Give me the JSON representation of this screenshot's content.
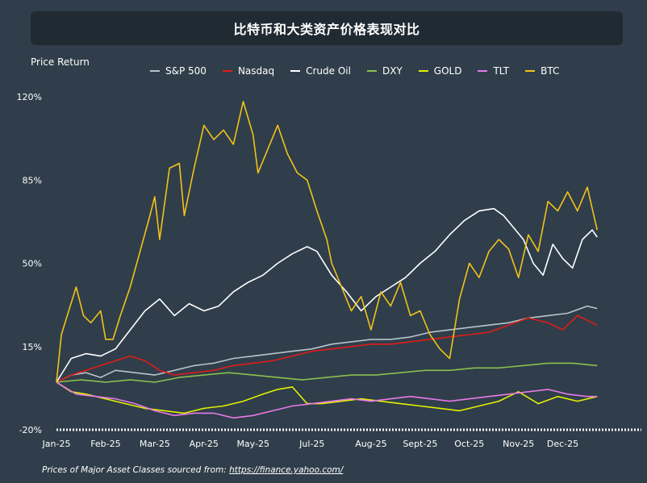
{
  "chart_data": {
    "type": "line",
    "title": "比特币和大类资产价格表现对比",
    "ylabel": "Price Return",
    "xlabel": "",
    "ylim": [
      -20,
      120
    ],
    "y_ticks": [
      "120%",
      "85%",
      "50%",
      "15%",
      "-20%"
    ],
    "y_tick_values": [
      120,
      85,
      50,
      15,
      -20
    ],
    "x_range": [
      0,
      11.9
    ],
    "x_ticks": [
      "Jan-25",
      "Feb-25",
      "Mar-25",
      "Apr-25",
      "May-25",
      "Jul-25",
      "Aug-25",
      "Sept-25",
      "Oct-25",
      "Nov-25",
      "Dec-25"
    ],
    "x_tick_values": [
      0,
      1,
      2,
      3,
      4,
      5.2,
      6.4,
      7.4,
      8.4,
      9.4,
      10.3
    ],
    "grid": false,
    "legend": "top",
    "series": [
      {
        "name": "S&P 500",
        "color": "#b8c4cc",
        "x": [
          0,
          0.3,
          0.6,
          0.9,
          1.2,
          1.6,
          2.0,
          2.4,
          2.8,
          3.2,
          3.6,
          4.0,
          4.4,
          4.8,
          5.2,
          5.6,
          6.0,
          6.4,
          6.8,
          7.2,
          7.6,
          8.0,
          8.4,
          8.8,
          9.2,
          9.6,
          10.0,
          10.4,
          10.8,
          11.0
        ],
        "values": [
          0,
          3,
          4,
          2,
          5,
          4,
          3,
          5,
          7,
          8,
          10,
          11,
          12,
          13,
          14,
          16,
          17,
          18,
          18,
          19,
          21,
          22,
          23,
          24,
          25,
          27,
          28,
          29,
          32,
          31
        ]
      },
      {
        "name": "Nasdaq",
        "color": "#e01b1b",
        "x": [
          0,
          0.3,
          0.6,
          0.9,
          1.2,
          1.5,
          1.8,
          2.1,
          2.4,
          2.8,
          3.2,
          3.6,
          4.0,
          4.4,
          4.8,
          5.2,
          5.6,
          6.0,
          6.4,
          6.8,
          7.2,
          7.6,
          8.0,
          8.4,
          8.8,
          9.2,
          9.6,
          10.0,
          10.3,
          10.6,
          10.8,
          11.0
        ],
        "values": [
          0,
          3,
          5,
          7,
          9,
          11,
          9,
          5,
          3,
          4,
          5,
          7,
          8,
          9,
          11,
          13,
          14,
          15,
          16,
          16,
          17,
          18,
          19,
          20,
          21,
          24,
          27,
          25,
          22,
          28,
          26,
          24
        ]
      },
      {
        "name": "Crude Oil",
        "color": "#ffffff",
        "x": [
          0,
          0.3,
          0.6,
          0.9,
          1.2,
          1.5,
          1.8,
          2.1,
          2.4,
          2.7,
          3.0,
          3.3,
          3.6,
          3.9,
          4.2,
          4.5,
          4.8,
          5.1,
          5.3,
          5.6,
          5.9,
          6.2,
          6.5,
          6.8,
          7.1,
          7.4,
          7.7,
          8.0,
          8.3,
          8.6,
          8.9,
          9.1,
          9.3,
          9.5,
          9.7,
          9.9,
          10.1,
          10.3,
          10.5,
          10.7,
          10.9,
          11.0
        ],
        "values": [
          0,
          10,
          12,
          11,
          14,
          22,
          30,
          35,
          28,
          33,
          30,
          32,
          38,
          42,
          45,
          50,
          54,
          57,
          55,
          45,
          38,
          30,
          36,
          40,
          44,
          50,
          55,
          62,
          68,
          72,
          73,
          70,
          65,
          60,
          50,
          45,
          58,
          52,
          48,
          60,
          64,
          61
        ]
      },
      {
        "name": "DXY",
        "color": "#8bbf4e",
        "x": [
          0,
          0.5,
          1.0,
          1.5,
          2.0,
          2.5,
          3.0,
          3.5,
          4.0,
          4.5,
          5.0,
          5.5,
          6.0,
          6.5,
          7.0,
          7.5,
          8.0,
          8.5,
          9.0,
          9.5,
          10.0,
          10.5,
          11.0
        ],
        "values": [
          0,
          1,
          0,
          1,
          0,
          2,
          3,
          4,
          3,
          2,
          1,
          2,
          3,
          3,
          4,
          5,
          5,
          6,
          6,
          7,
          8,
          8,
          7
        ]
      },
      {
        "name": "GOLD",
        "color": "#e3f000",
        "x": [
          0,
          0.3,
          0.6,
          1.0,
          1.4,
          1.8,
          2.2,
          2.6,
          3.0,
          3.4,
          3.8,
          4.2,
          4.5,
          4.8,
          5.1,
          5.4,
          5.8,
          6.2,
          6.6,
          7.0,
          7.4,
          7.8,
          8.2,
          8.6,
          9.0,
          9.4,
          9.8,
          10.2,
          10.6,
          11.0
        ],
        "values": [
          0,
          -4,
          -5,
          -7,
          -9,
          -11,
          -12,
          -13,
          -11,
          -10,
          -8,
          -5,
          -3,
          -2,
          -9,
          -9,
          -8,
          -7,
          -8,
          -9,
          -10,
          -11,
          -12,
          -10,
          -8,
          -4,
          -9,
          -6,
          -8,
          -6
        ]
      },
      {
        "name": "TLT",
        "color": "#e879e8",
        "x": [
          0,
          0.4,
          0.8,
          1.2,
          1.6,
          2.0,
          2.4,
          2.8,
          3.2,
          3.6,
          4.0,
          4.4,
          4.8,
          5.2,
          5.6,
          6.0,
          6.4,
          6.8,
          7.2,
          7.6,
          8.0,
          8.4,
          8.8,
          9.2,
          9.6,
          10.0,
          10.4,
          10.8,
          11.0
        ],
        "values": [
          0,
          -5,
          -6,
          -7,
          -9,
          -12,
          -14,
          -13,
          -13,
          -15,
          -14,
          -12,
          -10,
          -9,
          -8,
          -7,
          -8,
          -7,
          -6,
          -7,
          -8,
          -7,
          -6,
          -5,
          -4,
          -3,
          -5,
          -6,
          -6
        ]
      },
      {
        "name": "BTC",
        "color": "#f2c21a",
        "x": [
          0,
          0.1,
          0.25,
          0.4,
          0.55,
          0.7,
          0.9,
          1.0,
          1.15,
          1.3,
          1.5,
          1.7,
          1.9,
          2.0,
          2.1,
          2.3,
          2.5,
          2.6,
          2.8,
          3.0,
          3.2,
          3.4,
          3.6,
          3.8,
          4.0,
          4.1,
          4.3,
          4.5,
          4.7,
          4.9,
          5.1,
          5.3,
          5.5,
          5.6,
          5.8,
          6.0,
          6.2,
          6.4,
          6.6,
          6.8,
          7.0,
          7.2,
          7.4,
          7.6,
          7.8,
          8.0,
          8.2,
          8.4,
          8.6,
          8.8,
          9.0,
          9.2,
          9.4,
          9.6,
          9.8,
          10.0,
          10.2,
          10.4,
          10.6,
          10.8,
          11.0
        ],
        "values": [
          0,
          20,
          30,
          40,
          28,
          25,
          30,
          18,
          18,
          28,
          40,
          55,
          70,
          78,
          60,
          90,
          92,
          70,
          90,
          108,
          102,
          106,
          100,
          118,
          104,
          88,
          98,
          108,
          96,
          88,
          85,
          72,
          60,
          50,
          40,
          30,
          36,
          22,
          38,
          32,
          42,
          28,
          30,
          20,
          14,
          10,
          35,
          50,
          44,
          55,
          60,
          56,
          44,
          62,
          55,
          76,
          72,
          80,
          72,
          82,
          64
        ]
      }
    ]
  },
  "source": {
    "prefix": "Prices of Major Asset Classes sourced from: ",
    "link": "https://finance.yahoo.com/"
  }
}
